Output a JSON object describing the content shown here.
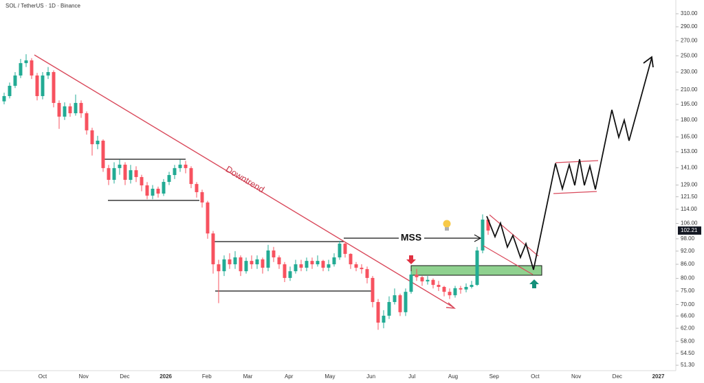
{
  "chart_data": {
    "type": "candlestick",
    "title": "SOL / TetherUS · 1D · Binance",
    "log_scale": true,
    "up_color": "#22ab94",
    "down_color": "#f7525f",
    "ylim": [
      49.9,
      332.6
    ],
    "yticks": [
      {
        "value": 310,
        "label": "310.00"
      },
      {
        "value": 290,
        "label": "290.00"
      },
      {
        "value": 270,
        "label": "270.00"
      },
      {
        "value": 250,
        "label": "250.00"
      },
      {
        "value": 230,
        "label": "230.00"
      },
      {
        "value": 210,
        "label": "210.00"
      },
      {
        "value": 195,
        "label": "195.00"
      },
      {
        "value": 180,
        "label": "180.00"
      },
      {
        "value": 165,
        "label": "165.00"
      },
      {
        "value": 153,
        "label": "153.00"
      },
      {
        "value": 141,
        "label": "141.00"
      },
      {
        "value": 129,
        "label": "129.00"
      },
      {
        "value": 121.5,
        "label": "121.50"
      },
      {
        "value": 114,
        "label": "114.00"
      },
      {
        "value": 106,
        "label": "106.00"
      },
      {
        "value": 98,
        "label": "98.00"
      },
      {
        "value": 92,
        "label": "92.00"
      },
      {
        "value": 86,
        "label": "86.00"
      },
      {
        "value": 80,
        "label": "80.00"
      },
      {
        "value": 75,
        "label": "75.00"
      },
      {
        "value": 70,
        "label": "70.00"
      },
      {
        "value": 66,
        "label": "66.00"
      },
      {
        "value": 62,
        "label": "62.00"
      },
      {
        "value": 58,
        "label": "58.00"
      },
      {
        "value": 54.5,
        "label": "54.50"
      },
      {
        "value": 51.3,
        "label": "51.30"
      }
    ],
    "x_axis_labels": [
      "Oct",
      "Nov",
      "Dec",
      "2026",
      "Feb",
      "Mar",
      "Apr",
      "May",
      "Jun",
      "Jul",
      "Aug",
      "Sep",
      "Oct",
      "Nov",
      "Dec",
      "2027"
    ],
    "last_price": 102.21,
    "annotations": [
      "Downtrend",
      "MSS"
    ],
    "open": [
      198,
      203.4,
      214.4,
      226.0,
      240.8,
      244.2,
      226.0,
      203.4,
      226.0,
      230.0,
      196.4,
      183.1,
      193.0,
      186.3,
      196.4,
      186.3,
      170.7,
      159.0,
      161.9,
      140.7,
      132.5,
      140.7,
      143.2,
      132.5,
      139.2,
      134.4,
      128.8,
      122.2,
      126.6,
      123.5,
      131.1,
      135.8,
      140.7,
      143.2,
      140.7,
      129.7,
      124.4,
      118.0,
      100.7,
      86.0,
      83.0,
      88.2,
      86.0,
      89.1,
      83.0,
      87.5,
      86.0,
      88.2,
      84.5,
      92.3,
      89.1,
      86.0,
      80.2,
      83.0,
      86.0,
      84.5,
      87.5,
      86.0,
      87.5,
      84.5,
      86.0,
      89.1,
      95.6,
      90.7,
      86.0,
      84.5,
      83.9,
      80.2,
      70.9,
      63.8,
      66.1,
      70.9,
      73.4,
      67.3,
      74.7,
      81.6,
      80.5,
      78.8,
      79.4,
      77.4,
      76.6,
      74.7,
      73.4,
      76.1,
      75.6,
      76.6,
      77.4,
      92.3,
      108.1
    ],
    "high": [
      207,
      218,
      230,
      246,
      252,
      247,
      229,
      230,
      236,
      232,
      199,
      197,
      196,
      205,
      199,
      188,
      173,
      166,
      163,
      143,
      145,
      147,
      145,
      143,
      142,
      136,
      131,
      129,
      128,
      133,
      138,
      143,
      147,
      146,
      142,
      131,
      126,
      119,
      102,
      88,
      90,
      91,
      92,
      90,
      89,
      90,
      90,
      89,
      95,
      94,
      90,
      87,
      85,
      88,
      88,
      89,
      89,
      90,
      88,
      88,
      91,
      97,
      96,
      91,
      87,
      86,
      85,
      81,
      72,
      68,
      73,
      76,
      74,
      76,
      83,
      84,
      81,
      81,
      80,
      79,
      77,
      76,
      77,
      77,
      78,
      79,
      94,
      111,
      109
    ],
    "low": [
      195,
      201,
      212,
      223,
      236,
      222,
      199,
      200,
      222,
      192,
      172,
      180,
      183,
      184,
      182,
      167,
      150,
      155,
      138,
      129,
      130,
      136,
      129,
      130,
      131,
      125,
      120,
      120,
      121,
      122,
      129,
      133,
      138,
      137,
      127,
      121,
      115,
      98,
      82,
      70.5,
      81,
      84,
      84,
      81,
      82,
      84,
      84,
      82,
      83,
      87,
      84,
      78.5,
      79,
      82,
      83,
      83,
      84,
      85,
      83,
      83,
      85,
      88,
      89,
      84,
      83,
      82,
      78,
      69,
      61.5,
      62,
      65,
      70,
      66,
      66,
      74,
      79,
      77,
      77.5,
      76,
      75,
      73,
      72,
      72.5,
      74,
      74.5,
      76,
      77,
      91,
      100
    ],
    "close": [
      203.4,
      214.4,
      226.0,
      240.8,
      244.2,
      226.0,
      203.4,
      226.0,
      230.0,
      196.4,
      183.1,
      193.0,
      186.3,
      196.4,
      186.3,
      170.7,
      159.0,
      161.9,
      140.7,
      132.5,
      140.7,
      143.2,
      132.5,
      139.2,
      134.4,
      128.8,
      122.2,
      126.6,
      123.5,
      131.1,
      135.8,
      140.7,
      143.2,
      140.7,
      129.7,
      124.4,
      118.0,
      100.7,
      86.0,
      83.0,
      88.2,
      86.0,
      89.1,
      83.0,
      87.5,
      86.0,
      88.2,
      84.5,
      92.3,
      89.1,
      86.0,
      80.2,
      83.0,
      86.0,
      84.5,
      87.5,
      86.0,
      87.5,
      84.5,
      86.0,
      89.1,
      95.6,
      90.7,
      86.0,
      84.5,
      83.9,
      80.2,
      70.9,
      63.8,
      66.1,
      70.9,
      73.4,
      67.3,
      74.7,
      81.6,
      80.5,
      78.8,
      79.4,
      77.4,
      76.6,
      74.7,
      73.4,
      76.1,
      75.6,
      76.6,
      77.4,
      92.3,
      108.1,
      102.21
    ]
  }
}
